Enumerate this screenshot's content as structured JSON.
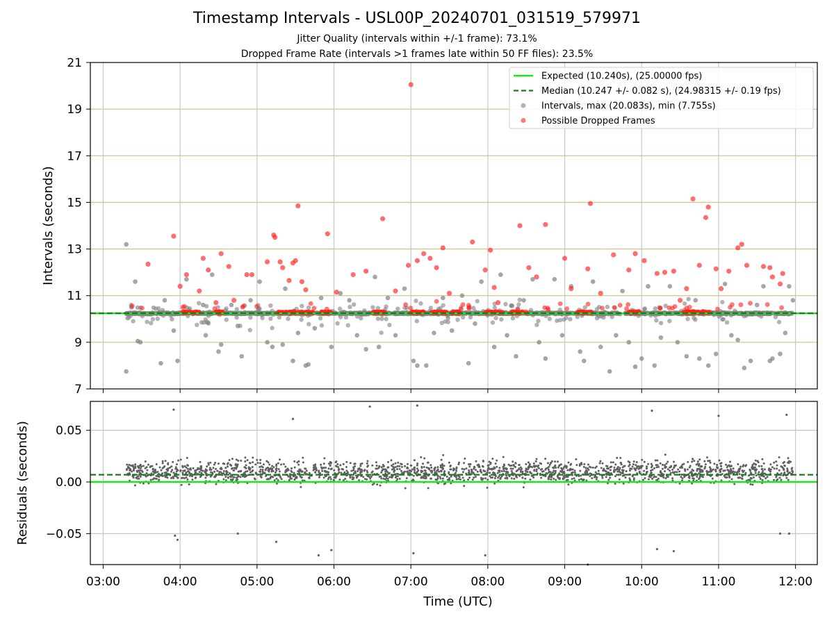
{
  "chart_data": [
    {
      "type": "scatter",
      "title": "Timestamp Intervals - USL00P_20240701_031519_579971",
      "subtitle_lines": [
        "Jitter Quality (intervals within +/-1 frame): 73.1%",
        "Dropped Frame Rate (intervals >1 frames late within 50 FF files): 23.5%"
      ],
      "xlabel": "",
      "ylabel": "Intervals (seconds)",
      "xlim": [
        "02:50",
        "12:17"
      ],
      "ylim": [
        7,
        21
      ],
      "yticks": [
        7,
        9,
        11,
        13,
        15,
        17,
        19,
        21
      ],
      "xticks": [
        "03:00",
        "04:00",
        "05:00",
        "06:00",
        "07:00",
        "08:00",
        "09:00",
        "10:00",
        "11:00",
        "12:00"
      ],
      "grid": true,
      "horizontal_lines_color": "#d4c58a",
      "legend_position": "top-right",
      "series": [
        {
          "name": "Expected (10.240s), (25.00000 fps)",
          "kind": "line",
          "style": "solid",
          "color": "#19e619",
          "y": 10.24
        },
        {
          "name": "Median (10.247 +/- 0.082 s), (24.98315 +/- 0.19 fps)",
          "kind": "line",
          "style": "dashed",
          "color": "#138013",
          "y": 10.247
        },
        {
          "name": "Intervals, max (20.083s), min (7.755s)",
          "kind": "scatter",
          "color": "#808080",
          "points": [
            [
              "03:18",
              13.2
            ],
            [
              "03:18",
              7.75
            ],
            [
              "03:22",
              10.5
            ],
            [
              "03:25",
              11.6
            ],
            [
              "03:27",
              9.05
            ],
            [
              "03:29",
              9.0
            ],
            [
              "03:45",
              8.1
            ],
            [
              "03:48",
              10.8
            ],
            [
              "03:55",
              9.5
            ],
            [
              "03:58",
              8.2
            ],
            [
              "04:05",
              11.7
            ],
            [
              "04:18",
              10.6
            ],
            [
              "04:20",
              9.3
            ],
            [
              "04:25",
              11.9
            ],
            [
              "04:30",
              8.6
            ],
            [
              "04:32",
              8.9
            ],
            [
              "04:40",
              10.6
            ],
            [
              "04:45",
              9.7
            ],
            [
              "04:48",
              8.4
            ],
            [
              "04:55",
              10.8
            ],
            [
              "05:02",
              11.6
            ],
            [
              "05:08",
              9.0
            ],
            [
              "05:12",
              8.8
            ],
            [
              "05:20",
              8.9
            ],
            [
              "05:22",
              11.3
            ],
            [
              "05:28",
              8.2
            ],
            [
              "05:32",
              9.4
            ],
            [
              "05:38",
              8.0
            ],
            [
              "05:40",
              8.05
            ],
            [
              "05:45",
              9.6
            ],
            [
              "05:50",
              10.9
            ],
            [
              "05:58",
              8.8
            ],
            [
              "06:05",
              11.1
            ],
            [
              "06:12",
              10.8
            ],
            [
              "06:18",
              9.3
            ],
            [
              "06:25",
              8.7
            ],
            [
              "06:32",
              11.8
            ],
            [
              "06:35",
              8.8
            ],
            [
              "06:42",
              10.9
            ],
            [
              "06:48",
              9.3
            ],
            [
              "06:55",
              11.3
            ],
            [
              "07:02",
              8.2
            ],
            [
              "07:05",
              8.0
            ],
            [
              "07:12",
              8.0
            ],
            [
              "07:18",
              9.4
            ],
            [
              "07:25",
              10.9
            ],
            [
              "07:32",
              9.5
            ],
            [
              "07:40",
              11.0
            ],
            [
              "07:45",
              8.1
            ],
            [
              "07:50",
              9.8
            ],
            [
              "07:55",
              11.6
            ],
            [
              "08:05",
              8.8
            ],
            [
              "08:10",
              11.9
            ],
            [
              "08:15",
              9.3
            ],
            [
              "08:22",
              8.4
            ],
            [
              "08:28",
              10.8
            ],
            [
              "08:35",
              11.7
            ],
            [
              "08:40",
              9.0
            ],
            [
              "08:45",
              8.3
            ],
            [
              "08:52",
              11.7
            ],
            [
              "08:58",
              9.3
            ],
            [
              "09:05",
              11.4
            ],
            [
              "09:12",
              8.6
            ],
            [
              "09:15",
              8.2
            ],
            [
              "09:22",
              11.6
            ],
            [
              "09:28",
              8.8
            ],
            [
              "09:35",
              7.75
            ],
            [
              "09:40",
              9.3
            ],
            [
              "09:45",
              11.2
            ],
            [
              "09:50",
              9.0
            ],
            [
              "09:55",
              7.95
            ],
            [
              "10:00",
              8.3
            ],
            [
              "10:05",
              11.4
            ],
            [
              "10:10",
              8.0
            ],
            [
              "10:15",
              9.2
            ],
            [
              "10:22",
              11.4
            ],
            [
              "10:28",
              9.0
            ],
            [
              "10:35",
              8.4
            ],
            [
              "10:42",
              10.8
            ],
            [
              "10:45",
              8.3
            ],
            [
              "10:52",
              8.0
            ],
            [
              "10:58",
              8.5
            ],
            [
              "11:05",
              11.5
            ],
            [
              "11:10",
              9.3
            ],
            [
              "11:15",
              9.1
            ],
            [
              "11:20",
              7.9
            ],
            [
              "11:25",
              8.2
            ],
            [
              "11:30",
              10.6
            ],
            [
              "11:35",
              11.4
            ],
            [
              "11:40",
              8.2
            ],
            [
              "11:42",
              8.3
            ],
            [
              "11:48",
              8.5
            ],
            [
              "11:52",
              9.4
            ],
            [
              "11:55",
              11.4
            ],
            [
              "11:58",
              10.8
            ]
          ]
        },
        {
          "name": "Possible Dropped Frames",
          "kind": "scatter",
          "color": "#ff2020",
          "points": [
            [
              "03:35",
              12.35
            ],
            [
              "03:55",
              13.55
            ],
            [
              "04:00",
              11.4
            ],
            [
              "04:05",
              11.9
            ],
            [
              "04:15",
              11.2
            ],
            [
              "04:18",
              12.6
            ],
            [
              "04:22",
              12.1
            ],
            [
              "04:28",
              10.7
            ],
            [
              "04:32",
              12.8
            ],
            [
              "04:38",
              12.25
            ],
            [
              "04:42",
              10.8
            ],
            [
              "04:52",
              11.9
            ],
            [
              "04:56",
              11.9
            ],
            [
              "05:08",
              12.45
            ],
            [
              "05:13",
              13.6
            ],
            [
              "05:14",
              13.5
            ],
            [
              "05:18",
              12.45
            ],
            [
              "05:20",
              12.2
            ],
            [
              "05:25",
              11.65
            ],
            [
              "05:28",
              12.4
            ],
            [
              "05:30",
              12.5
            ],
            [
              "05:32",
              14.85
            ],
            [
              "05:35",
              11.6
            ],
            [
              "05:38",
              11.25
            ],
            [
              "05:55",
              13.65
            ],
            [
              "06:02",
              11.15
            ],
            [
              "06:15",
              11.9
            ],
            [
              "06:25",
              12.05
            ],
            [
              "06:38",
              14.3
            ],
            [
              "06:48",
              11.2
            ],
            [
              "06:58",
              12.3
            ],
            [
              "07:00",
              20.05
            ],
            [
              "07:05",
              12.5
            ],
            [
              "07:10",
              12.8
            ],
            [
              "07:15",
              12.6
            ],
            [
              "07:20",
              12.2
            ],
            [
              "07:25",
              13.05
            ],
            [
              "07:30",
              11.1
            ],
            [
              "07:48",
              13.3
            ],
            [
              "07:58",
              12.1
            ],
            [
              "08:02",
              12.95
            ],
            [
              "08:05",
              11.35
            ],
            [
              "08:08",
              10.7
            ],
            [
              "08:25",
              14.0
            ],
            [
              "08:32",
              12.2
            ],
            [
              "08:38",
              11.8
            ],
            [
              "08:45",
              14.05
            ],
            [
              "09:00",
              12.6
            ],
            [
              "09:05",
              11.3
            ],
            [
              "09:18",
              12.15
            ],
            [
              "09:20",
              14.95
            ],
            [
              "09:28",
              11.1
            ],
            [
              "09:38",
              12.75
            ],
            [
              "09:50",
              12.1
            ],
            [
              "09:55",
              12.8
            ],
            [
              "10:02",
              12.5
            ],
            [
              "10:12",
              11.95
            ],
            [
              "10:18",
              12.0
            ],
            [
              "10:25",
              12.05
            ],
            [
              "10:30",
              10.8
            ],
            [
              "10:35",
              11.3
            ],
            [
              "10:40",
              15.15
            ],
            [
              "10:45",
              12.3
            ],
            [
              "10:50",
              14.35
            ],
            [
              "10:52",
              14.8
            ],
            [
              "10:58",
              12.15
            ],
            [
              "11:02",
              11.3
            ],
            [
              "11:08",
              12.05
            ],
            [
              "11:15",
              13.05
            ],
            [
              "11:18",
              13.2
            ],
            [
              "11:22",
              12.3
            ],
            [
              "11:35",
              12.25
            ],
            [
              "11:40",
              12.2
            ],
            [
              "11:42",
              11.8
            ],
            [
              "11:48",
              11.5
            ],
            [
              "11:50",
              11.95
            ]
          ]
        }
      ]
    },
    {
      "type": "scatter",
      "xlabel": "Time (UTC)",
      "ylabel": "Residuals (seconds)",
      "xlim": [
        "02:50",
        "12:17"
      ],
      "ylim": [
        -0.08,
        0.078
      ],
      "yticks": [
        -0.05,
        0.0,
        0.05
      ],
      "ytick_labels": [
        "−0.05",
        "0.00",
        "0.05"
      ],
      "xticks": [
        "03:00",
        "04:00",
        "05:00",
        "06:00",
        "07:00",
        "08:00",
        "09:00",
        "10:00",
        "11:00",
        "12:00"
      ],
      "grid": true,
      "series": [
        {
          "kind": "line",
          "style": "solid",
          "color": "#19e619",
          "y": 0.0
        },
        {
          "kind": "line",
          "style": "dashed",
          "color": "#138013",
          "y": 0.007
        },
        {
          "kind": "scatter",
          "color": "#606060",
          "x_range": [
            "03:18",
            "11:58"
          ],
          "y_center": 0.01,
          "y_spread": 0.02,
          "outliers": [
            [
              "03:55",
              0.07
            ],
            [
              "03:56",
              -0.052
            ],
            [
              "03:58",
              -0.056
            ],
            [
              "06:28",
              0.073
            ],
            [
              "07:05",
              0.074
            ],
            [
              "07:02",
              -0.069
            ],
            [
              "05:48",
              -0.071
            ],
            [
              "05:58",
              -0.066
            ],
            [
              "07:58",
              -0.071
            ],
            [
              "09:18",
              -0.08
            ],
            [
              "10:08",
              0.069
            ],
            [
              "10:12",
              -0.065
            ],
            [
              "10:25",
              -0.067
            ],
            [
              "11:00",
              0.064
            ],
            [
              "11:53",
              0.065
            ],
            [
              "11:48",
              -0.05
            ],
            [
              "11:55",
              -0.05
            ],
            [
              "05:15",
              -0.058
            ],
            [
              "05:28",
              0.061
            ],
            [
              "04:45",
              -0.05
            ]
          ]
        }
      ]
    }
  ],
  "legend": {
    "entries": [
      {
        "label": "Expected (10.240s), (25.00000 fps)",
        "marker": "line",
        "color": "#19e619"
      },
      {
        "label": "Median (10.247 +/- 0.082 s), (24.98315 +/- 0.19 fps)",
        "marker": "dashed",
        "color": "#138013"
      },
      {
        "label": "Intervals, max (20.083s), min (7.755s)",
        "marker": "dot",
        "color": "#808080"
      },
      {
        "label": "Possible Dropped Frames",
        "marker": "dot",
        "color": "#ff2020"
      }
    ]
  }
}
